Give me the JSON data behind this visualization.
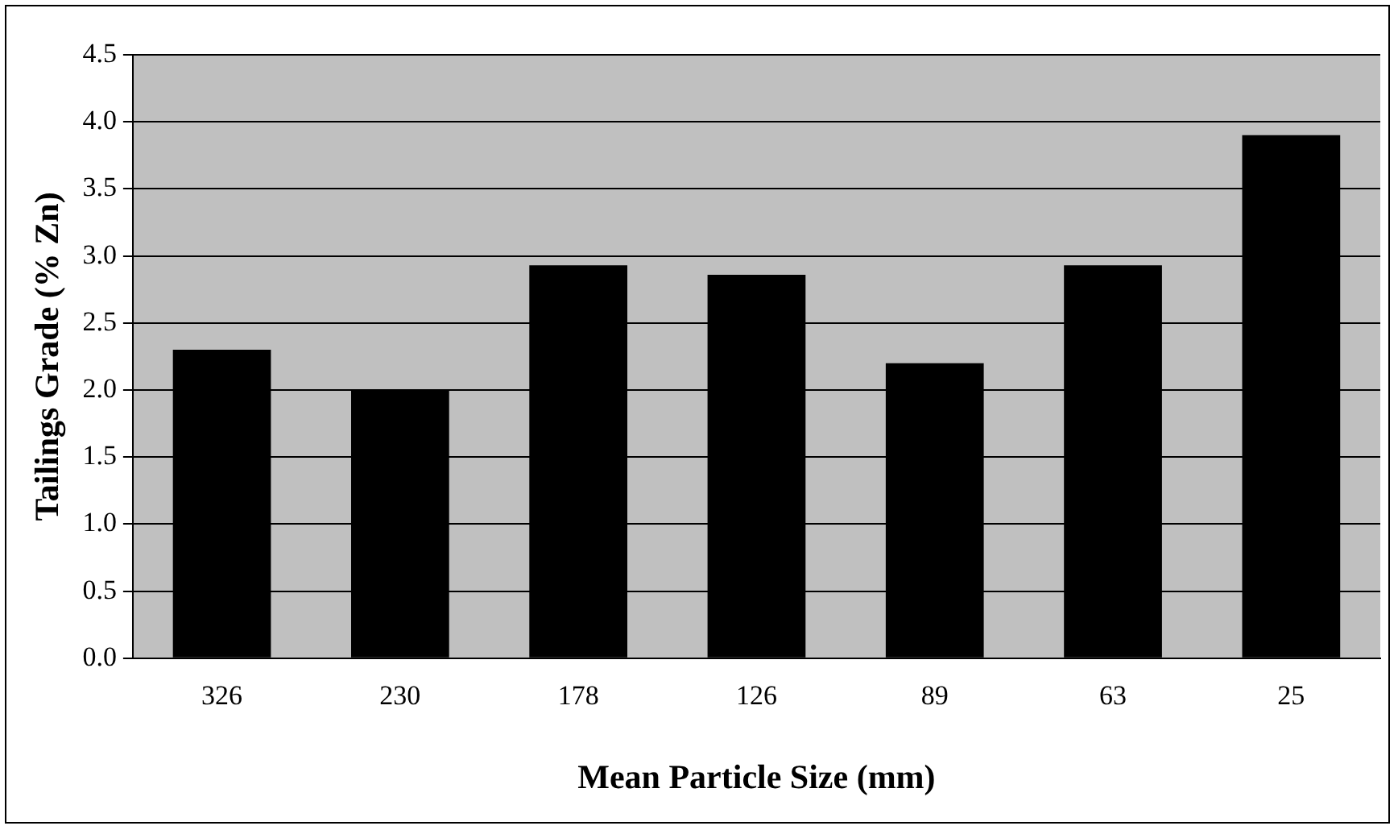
{
  "chart_data": {
    "type": "bar",
    "xlabel": "Mean Particle Size (mm)",
    "ylabel": "Tailings Grade (% Zn)",
    "categories": [
      "326",
      "230",
      "178",
      "126",
      "89",
      "63",
      "25"
    ],
    "values": [
      2.3,
      2.0,
      2.93,
      2.86,
      2.2,
      2.93,
      3.9
    ],
    "color": "#000000",
    "ylim": [
      0,
      4.5
    ],
    "yticks": [
      {
        "value": 0,
        "label": "0.0"
      },
      {
        "value": 0.5,
        "label": "0.5"
      },
      {
        "value": 1,
        "label": "1.0"
      },
      {
        "value": 1.5,
        "label": "1.5"
      },
      {
        "value": 2,
        "label": "2.0"
      },
      {
        "value": 2.5,
        "label": "2.5"
      },
      {
        "value": 3,
        "label": "3.0"
      },
      {
        "value": 3.5,
        "label": "3.5"
      },
      {
        "value": 4,
        "label": "4.0"
      },
      {
        "value": 4.5,
        "label": "4.5"
      }
    ],
    "grid": "y"
  }
}
